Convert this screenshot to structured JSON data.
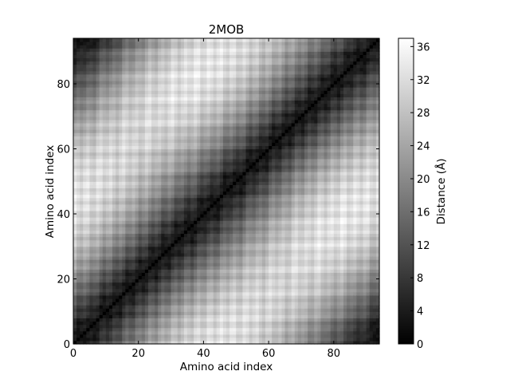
{
  "chart_data": {
    "type": "heatmap",
    "title": "2MOB",
    "xlabel": "Amino acid index",
    "ylabel": "Amino acid index",
    "n_residues": 94,
    "xlim": [
      0,
      94
    ],
    "ylim": [
      0,
      94
    ],
    "x_ticks": [
      0,
      20,
      40,
      60,
      80
    ],
    "y_ticks": [
      0,
      20,
      40,
      60,
      80
    ],
    "colormap": "gray",
    "colorbar": {
      "label": "Distance (Å)",
      "min": 0,
      "max": 37,
      "ticks": [
        0,
        4,
        8,
        12,
        16,
        20,
        24,
        28,
        32,
        36
      ]
    }
  }
}
